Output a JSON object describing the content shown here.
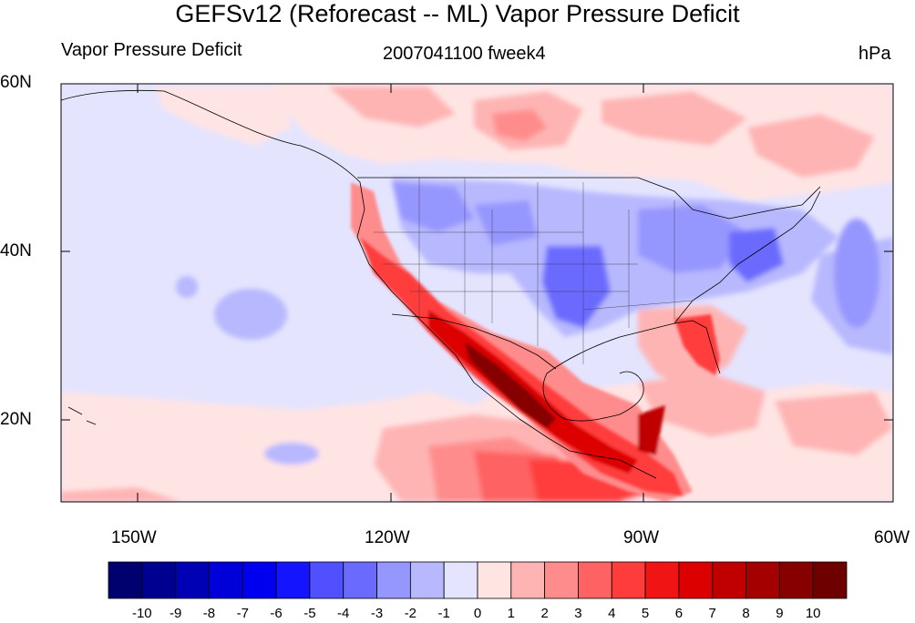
{
  "title": "GEFSv12 (Reforecast -- ML) Vapor Pressure Deficit",
  "left_subtitle": "Vapor Pressure Deficit",
  "center_subtitle": "2007041100 fweek4",
  "right_subtitle": "hPa",
  "lat_labels": [
    "60N",
    "40N",
    "20N"
  ],
  "lon_labels": [
    "150W",
    "120W",
    "90W",
    "60W"
  ],
  "colorbar": {
    "labels": [
      "-10",
      "-9",
      "-8",
      "-7",
      "-6",
      "-5",
      "-4",
      "-3",
      "-2",
      "-1",
      "0",
      "1",
      "2",
      "3",
      "4",
      "5",
      "6",
      "7",
      "8",
      "9",
      "10"
    ],
    "colors": [
      "#00006e",
      "#000090",
      "#0000b4",
      "#0000d8",
      "#0000f0",
      "#1414ff",
      "#5050ff",
      "#6a6aff",
      "#9696ff",
      "#b8b8ff",
      "#e4e4ff",
      "#ffe4e4",
      "#ffb4b4",
      "#ff8c8c",
      "#ff6262",
      "#ff3c3c",
      "#f01414",
      "#dc0000",
      "#c00000",
      "#a40000",
      "#860000",
      "#6e0000"
    ]
  },
  "colors": {
    "ocean_neutral": "#e4e4ff",
    "light_warm": "#ffe4e4",
    "warm": "#ffb4b4",
    "hot": "#ff6262",
    "very_hot": "#dc0000",
    "extreme": "#6e0000",
    "cool": "#b8b8ff",
    "cold": "#6a6aff"
  }
}
